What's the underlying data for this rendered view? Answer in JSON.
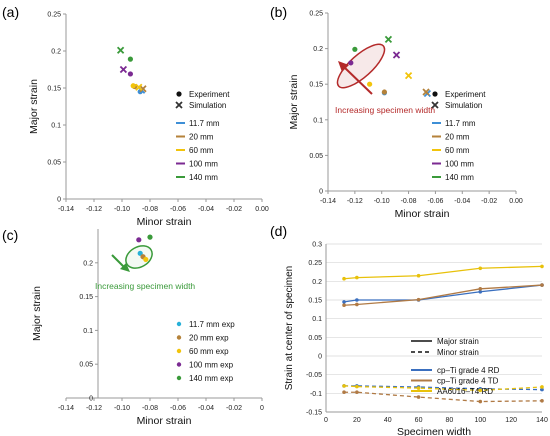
{
  "colors": {
    "blue": "#3e8fd6",
    "brown": "#b5823a",
    "yellow": "#f2c40c",
    "purple": "#7b2a92",
    "green": "#3a9a3a",
    "teal": "#27b0d8",
    "orange_ellipse": "#b42a2a",
    "arrow_red": "#b42a2a",
    "arrow_green": "#3a9a3a",
    "lineBlue": "#3a6fbf",
    "lineBrown": "#b07a45",
    "lineYellow": "#e8c10a",
    "panelA_sim_purple": "#7a5ab0"
  },
  "chart_data": [
    {
      "panel_label": "(a)",
      "type": "scatter",
      "xlabel": "Minor strain",
      "ylabel": "Major strain",
      "xlim": [
        -0.14,
        0.0
      ],
      "ylim": [
        0.0,
        0.25
      ],
      "xticks": [
        "-0.14",
        "-0.12",
        "-0.10",
        "-0.08",
        "-0.06",
        "-0.04",
        "-0.02",
        "0.00"
      ],
      "yticks": [
        "0",
        "0.05",
        "0.1",
        "0.15",
        "0.2",
        "0.25"
      ],
      "legend_markers": [
        {
          "marker": "dot",
          "label": "Experiment"
        },
        {
          "marker": "x",
          "label": "Simulation"
        }
      ],
      "legend_lines": [
        {
          "label": "11.7 mm",
          "color": "blue"
        },
        {
          "label": "20 mm",
          "color": "brown"
        },
        {
          "label": "60 mm",
          "color": "yellow"
        },
        {
          "label": "100 mm",
          "color": "purple"
        },
        {
          "label": "140 mm",
          "color": "green"
        }
      ],
      "series": [
        {
          "color": "blue",
          "experiment": [
            [
              -0.087,
              0.145
            ]
          ],
          "simulation": [
            [
              -0.086,
              0.147
            ]
          ]
        },
        {
          "color": "brown",
          "experiment": [
            [
              -0.091,
              0.152
            ]
          ],
          "simulation": [
            [
              -0.085,
              0.149
            ]
          ]
        },
        {
          "color": "yellow",
          "experiment": [
            [
              -0.092,
              0.153
            ]
          ],
          "simulation": [
            [
              -0.088,
              0.151
            ]
          ]
        },
        {
          "color": "purple",
          "experiment": [
            [
              -0.094,
              0.169
            ]
          ],
          "simulation": [
            [
              -0.099,
              0.175
            ]
          ]
        },
        {
          "color": "green",
          "experiment": [
            [
              -0.094,
              0.189
            ]
          ],
          "simulation": [
            [
              -0.101,
              0.201
            ]
          ]
        }
      ]
    },
    {
      "panel_label": "(b)",
      "type": "scatter",
      "xlabel": "Minor strain",
      "ylabel": "Major strain",
      "xlim": [
        -0.14,
        0.0
      ],
      "ylim": [
        0.0,
        0.25
      ],
      "xticks": [
        "-0.14",
        "-0.12",
        "-0.10",
        "-0.08",
        "-0.06",
        "-0.04",
        "-0.02",
        "0.00"
      ],
      "yticks": [
        "0",
        "0.05",
        "0.1",
        "0.15",
        "0.2",
        "0.25"
      ],
      "annotation": "Increasing specimen width",
      "legend_markers": [
        {
          "marker": "dot",
          "label": "Experiment"
        },
        {
          "marker": "x",
          "label": "Simulation"
        }
      ],
      "legend_lines": [
        {
          "label": "11.7 mm",
          "color": "blue"
        },
        {
          "label": "20 mm",
          "color": "brown"
        },
        {
          "label": "60 mm",
          "color": "yellow"
        },
        {
          "label": "100 mm",
          "color": "purple"
        },
        {
          "label": "140 mm",
          "color": "green"
        }
      ],
      "series": [
        {
          "color": "blue",
          "experiment": [
            [
              -0.098,
              0.138
            ]
          ],
          "simulation": [
            [
              -0.066,
              0.137
            ]
          ]
        },
        {
          "color": "brown",
          "experiment": [
            [
              -0.098,
              0.139
            ]
          ],
          "simulation": [
            [
              -0.067,
              0.139
            ]
          ]
        },
        {
          "color": "yellow",
          "experiment": [
            [
              -0.109,
              0.15
            ]
          ],
          "simulation": [
            [
              -0.08,
              0.162
            ]
          ]
        },
        {
          "color": "purple",
          "experiment": [
            [
              -0.123,
              0.18
            ]
          ],
          "simulation": [
            [
              -0.089,
              0.191
            ]
          ]
        },
        {
          "color": "green",
          "experiment": [
            [
              -0.12,
              0.199
            ]
          ],
          "simulation": [
            [
              -0.095,
              0.213
            ]
          ]
        }
      ]
    },
    {
      "panel_label": "(c)",
      "type": "scatter",
      "xlabel": "Minor strain",
      "ylabel": "Major strain",
      "xlim": [
        -0.14,
        0.0
      ],
      "ylim": [
        0.0,
        0.25
      ],
      "xticks": [
        "-0.14",
        "-0.12",
        "-0.10",
        "-0.08",
        "-0.06",
        "-0.04",
        "-0.02",
        "0"
      ],
      "yticks": [
        "0",
        "0.05",
        "0.1",
        "0.15",
        "0.2"
      ],
      "annotation": "Increasing specimen width",
      "legend_lines": [
        {
          "label": "11.7 mm exp",
          "color": "teal"
        },
        {
          "label": "20 mm exp",
          "color": "brown"
        },
        {
          "label": "60 mm exp",
          "color": "yellow"
        },
        {
          "label": "100 mm exp",
          "color": "purple"
        },
        {
          "label": "140 mm exp",
          "color": "green"
        }
      ],
      "series": [
        {
          "color": "teal",
          "experiment": [
            [
              -0.087,
              0.214
            ]
          ]
        },
        {
          "color": "brown",
          "experiment": [
            [
              -0.085,
              0.209
            ]
          ]
        },
        {
          "color": "yellow",
          "experiment": [
            [
              -0.083,
              0.205
            ]
          ]
        },
        {
          "color": "purple",
          "experiment": [
            [
              -0.088,
              0.234
            ]
          ]
        },
        {
          "color": "green",
          "experiment": [
            [
              -0.08,
              0.238
            ]
          ]
        }
      ]
    },
    {
      "panel_label": "(d)",
      "type": "line",
      "xlabel": "Specimen width",
      "ylabel": "Strain at center of specimen",
      "xlim": [
        0,
        140
      ],
      "ylim": [
        -0.15,
        0.3
      ],
      "xticks": [
        "0",
        "20",
        "40",
        "60",
        "80",
        "100",
        "120",
        "140"
      ],
      "yticks": [
        "-0.15",
        "-0.1",
        "-0.05",
        "0",
        "0.05",
        "0.1",
        "0.15",
        "0.2",
        "0.25",
        "0.3"
      ],
      "legend_style": [
        {
          "style": "solid",
          "label": "Major strain"
        },
        {
          "style": "dashed",
          "label": "Minor strain"
        }
      ],
      "legend_materials": [
        {
          "label": "cp–Ti grade 4 RD",
          "color": "lineBlue"
        },
        {
          "label": "cp–Ti grade 4 TD",
          "color": "lineBrown"
        },
        {
          "label": "AA6016–T4 RD",
          "color": "lineYellow"
        }
      ],
      "x": [
        11.7,
        20,
        60,
        100,
        140
      ],
      "series": [
        {
          "name": "cp–Ti grade 4 RD",
          "kind": "major",
          "color": "lineBlue",
          "values": [
            0.145,
            0.15,
            0.15,
            0.172,
            0.19
          ]
        },
        {
          "name": "cp–Ti grade 4 TD",
          "kind": "major",
          "color": "lineBrown",
          "values": [
            0.136,
            0.138,
            0.151,
            0.18,
            0.19
          ]
        },
        {
          "name": "AA6016–T4 RD",
          "kind": "major",
          "color": "lineYellow",
          "values": [
            0.207,
            0.21,
            0.215,
            0.235,
            0.24
          ]
        },
        {
          "name": "cp–Ti grade 4 RD",
          "kind": "minor",
          "color": "lineBlue",
          "values": [
            -0.08,
            -0.08,
            -0.083,
            -0.088,
            -0.09
          ]
        },
        {
          "name": "cp–Ti grade 4 TD",
          "kind": "minor",
          "color": "lineBrown",
          "values": [
            -0.097,
            -0.097,
            -0.11,
            -0.122,
            -0.12
          ]
        },
        {
          "name": "AA6016–T4 RD",
          "kind": "minor",
          "color": "lineYellow",
          "values": [
            -0.08,
            -0.082,
            -0.086,
            -0.092,
            -0.083
          ]
        }
      ]
    }
  ]
}
